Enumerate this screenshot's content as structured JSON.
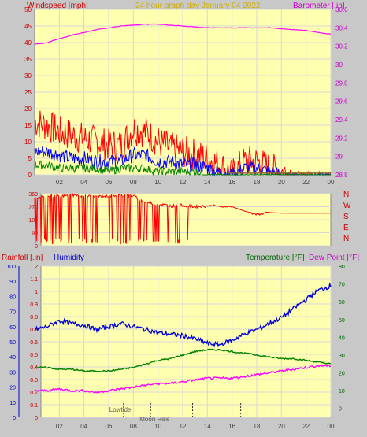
{
  "header": {
    "windspeed_label": "Windspeed [mph]",
    "title": "24 hour graph day   January 04 2022",
    "barometer_label": "Barometer [.in]"
  },
  "colors": {
    "background": "#c8c8c8",
    "plot_bg": "#ffffb0",
    "grid": "#d8d8d8",
    "wind_gust": "#ff0000",
    "wind_avg": "#0000ff",
    "wind_low": "#008000",
    "barometer": "#ff00ff",
    "direction": "#ff0000",
    "humidity": "#0000dd",
    "temperature": "#008000",
    "dewpoint": "#ff00ff",
    "title_color": "#d0b000",
    "axis_red": "#cc0000"
  },
  "chart_data": [
    {
      "type": "line",
      "x_ticks": [
        "02",
        "04",
        "06",
        "08",
        "10",
        "12",
        "14",
        "16",
        "18",
        "20",
        "22",
        "00"
      ],
      "ylabel": "Windspeed [mph]",
      "ylim": [
        0,
        50
      ],
      "y_ticks": [
        0,
        5,
        10,
        15,
        20,
        25,
        30,
        35,
        40,
        45,
        50
      ],
      "y2label": "Barometer [.in]",
      "y2lim": [
        28.8,
        30.6
      ],
      "y2_ticks": [
        "28.8",
        "29",
        "29.2",
        "29.4",
        "29.6",
        "29.8",
        "30",
        "30.2",
        "30.4",
        "30.6"
      ],
      "series": [
        {
          "name": "Windspeed gust",
          "x": [
            0,
            1,
            2,
            3,
            4,
            5,
            6,
            7,
            8,
            9,
            10,
            11,
            12,
            13,
            14,
            15,
            16,
            17,
            18,
            19,
            20,
            21,
            22,
            23,
            24
          ],
          "values": [
            16,
            15,
            13,
            12,
            11,
            10,
            9,
            9,
            14,
            13,
            10,
            8,
            7,
            6,
            5,
            3,
            0,
            4,
            4,
            2,
            1,
            0,
            0,
            0,
            0
          ]
        },
        {
          "name": "Windspeed average",
          "x": [
            0,
            1,
            2,
            3,
            4,
            5,
            6,
            7,
            8,
            9,
            10,
            11,
            12,
            13,
            14,
            15,
            16,
            17,
            18,
            19,
            20,
            21,
            22,
            23,
            24
          ],
          "values": [
            7,
            7,
            6,
            5,
            5,
            4,
            4,
            4,
            6,
            6,
            4,
            4,
            3,
            3,
            2,
            1,
            0,
            2,
            2,
            1,
            0,
            0,
            0,
            0,
            0
          ]
        },
        {
          "name": "Windspeed low",
          "x": [
            0,
            1,
            2,
            3,
            4,
            5,
            6,
            7,
            8,
            9,
            10,
            11,
            12,
            13,
            14,
            15,
            16,
            17,
            18,
            19,
            20,
            21,
            22,
            23,
            24
          ],
          "values": [
            3,
            3,
            2,
            2,
            2,
            2,
            1,
            2,
            2,
            2,
            1,
            1,
            1,
            1,
            0,
            0,
            0,
            0,
            0,
            0,
            0,
            0,
            0,
            0,
            0
          ]
        },
        {
          "name": "Barometer",
          "x": [
            0,
            1,
            2,
            3,
            4,
            5,
            6,
            7,
            8,
            9,
            10,
            11,
            12,
            13,
            14,
            15,
            16,
            17,
            18,
            19,
            20,
            21,
            22,
            23,
            24
          ],
          "values": [
            30.22,
            30.24,
            30.28,
            30.32,
            30.35,
            30.38,
            30.4,
            30.42,
            30.43,
            30.44,
            30.44,
            30.43,
            30.42,
            30.41,
            30.4,
            30.4,
            30.4,
            30.4,
            30.4,
            30.4,
            30.39,
            30.38,
            30.37,
            30.35,
            30.33
          ]
        }
      ]
    },
    {
      "type": "line",
      "x_ticks": [
        "02",
        "04",
        "06",
        "08",
        "10",
        "12",
        "14",
        "16",
        "18",
        "20",
        "22",
        "00"
      ],
      "ylim": [
        0,
        360
      ],
      "y_ticks": [
        0,
        90,
        180,
        270,
        360
      ],
      "y_tick_labels": [
        "0",
        "90",
        "180",
        "270",
        "360"
      ],
      "right_labels": [
        "N",
        "W",
        "S",
        "E",
        "N"
      ],
      "series": [
        {
          "name": "Wind direction",
          "x": [
            0,
            1,
            2,
            3,
            4,
            5,
            6,
            7,
            8,
            9,
            10,
            11,
            12,
            13,
            14,
            14.5,
            15,
            16,
            17,
            18,
            19,
            20,
            21,
            22,
            23,
            24
          ],
          "values": [
            330,
            345,
            340,
            350,
            345,
            340,
            345,
            350,
            345,
            300,
            290,
            275,
            280,
            270,
            275,
            280,
            270,
            270,
            240,
            215,
            230,
            225,
            225,
            225,
            225,
            225
          ]
        }
      ]
    },
    {
      "type": "line",
      "x_ticks": [
        "02",
        "04",
        "06",
        "08",
        "10",
        "12",
        "14",
        "16",
        "18",
        "20",
        "22",
        "00"
      ],
      "rainfall_label": "Rainfall [.in]",
      "humidity_label": "Humidity",
      "temperature_label": "Temperature [°F]",
      "dewpoint_label": "Dew Point [°F]",
      "humidity_ticks": [
        0,
        10,
        20,
        30,
        40,
        50,
        60,
        70,
        80,
        90,
        100
      ],
      "rain_ticks": [
        "0",
        "0.1",
        "0.2",
        "0.3",
        "0.4",
        "0.5",
        "0.6",
        "0.7",
        "0.8",
        "0.9",
        "1",
        "1.1",
        "1.2"
      ],
      "temp_ticks": [
        0,
        10,
        20,
        30,
        40,
        50,
        60,
        70,
        80
      ],
      "ylim_temperature": [
        -5,
        80
      ],
      "events": [
        {
          "label": "Lowtide",
          "x": 7.2
        },
        {
          "label": "Moon Rise",
          "x": 9.4
        },
        {
          "label": "",
          "x": 12.8
        },
        {
          "label": "",
          "x": 16.7
        }
      ],
      "series": [
        {
          "name": "Humidity",
          "x": [
            0,
            1,
            2,
            3,
            4,
            5,
            6,
            7,
            8,
            9,
            10,
            11,
            12,
            13,
            14,
            15,
            16,
            17,
            18,
            19,
            20,
            21,
            22,
            23,
            24
          ],
          "values": [
            58,
            60,
            64,
            62,
            61,
            58,
            60,
            62,
            60,
            58,
            56,
            55,
            54,
            52,
            49,
            48,
            51,
            55,
            58,
            62,
            66,
            72,
            78,
            84,
            87
          ]
        },
        {
          "name": "Temperature",
          "x": [
            0,
            1,
            2,
            3,
            4,
            5,
            6,
            7,
            8,
            9,
            10,
            11,
            12,
            13,
            14,
            15,
            16,
            17,
            18,
            19,
            20,
            21,
            22,
            23,
            24
          ],
          "values": [
            23,
            23,
            22,
            22,
            21,
            21,
            21,
            22,
            23,
            25,
            27,
            28,
            30,
            32,
            33,
            33,
            32,
            31,
            30,
            29,
            28,
            28,
            27,
            26,
            25
          ]
        },
        {
          "name": "Dew Point",
          "x": [
            0,
            1,
            2,
            3,
            4,
            5,
            6,
            7,
            8,
            9,
            10,
            11,
            12,
            13,
            14,
            15,
            16,
            17,
            18,
            19,
            20,
            21,
            22,
            23,
            24
          ],
          "values": [
            10,
            10,
            11,
            10,
            10,
            9,
            10,
            11,
            12,
            13,
            14,
            14,
            15,
            16,
            17,
            17,
            17,
            18,
            19,
            20,
            21,
            22,
            23,
            24,
            24
          ]
        }
      ]
    }
  ]
}
